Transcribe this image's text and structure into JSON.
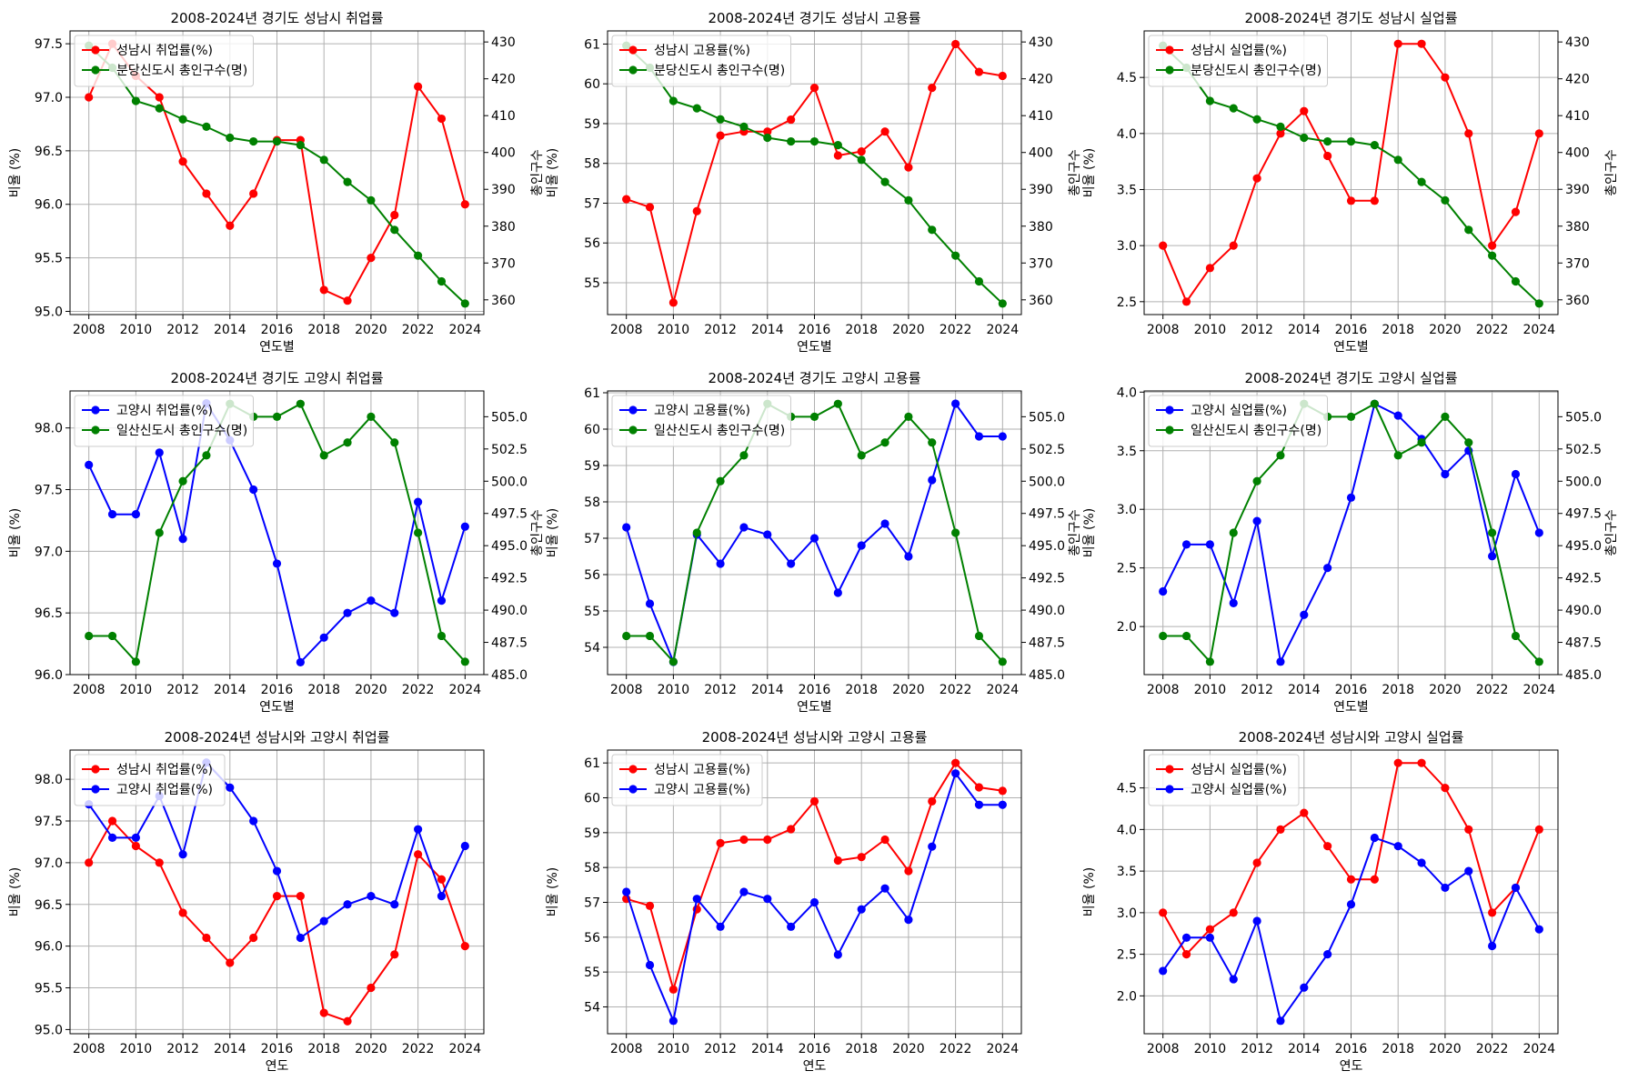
{
  "chart_data": [
    {
      "type": "line",
      "title": "2008-2024년 경기도 성남시 취업률",
      "xlabel": "연도별",
      "ylabel": "비율 (%)",
      "y2label": "총인구수",
      "x": [
        2008,
        2009,
        2010,
        2011,
        2012,
        2013,
        2014,
        2015,
        2016,
        2017,
        2018,
        2019,
        2020,
        2021,
        2022,
        2023,
        2024
      ],
      "xticks": [
        2008,
        2010,
        2012,
        2014,
        2016,
        2018,
        2020,
        2022,
        2024
      ],
      "ylim": [
        94.97,
        97.62
      ],
      "yticks": [
        "95.0",
        "95.5",
        "96.0",
        "96.5",
        "97.0",
        "97.5"
      ],
      "y2lim": [
        356,
        433
      ],
      "y2ticks": [
        "360",
        "370",
        "380",
        "390",
        "400",
        "410",
        "420",
        "430"
      ],
      "grid": true,
      "legend": "upper-left",
      "series": [
        {
          "name": "성남시 취업률(%)",
          "axis": "left",
          "color": "#ff0000",
          "values": [
            97.0,
            97.5,
            97.2,
            97.0,
            96.4,
            96.1,
            95.8,
            96.1,
            96.6,
            96.6,
            95.2,
            95.1,
            95.5,
            95.9,
            97.1,
            96.8,
            96.0
          ]
        },
        {
          "name": "분당신도시 총인구수(명)",
          "axis": "right",
          "color": "#008000",
          "values": [
            429,
            423,
            414,
            412,
            409,
            407,
            404,
            403,
            403,
            402,
            398,
            392,
            387,
            379,
            372,
            365,
            359
          ]
        }
      ]
    },
    {
      "type": "line",
      "title": "2008-2024년 경기도 성남시 고용률",
      "xlabel": "연도별",
      "ylabel": "비율 (%)",
      "y2label": "총인구수",
      "x": [
        2008,
        2009,
        2010,
        2011,
        2012,
        2013,
        2014,
        2015,
        2016,
        2017,
        2018,
        2019,
        2020,
        2021,
        2022,
        2023,
        2024
      ],
      "xticks": [
        2008,
        2010,
        2012,
        2014,
        2016,
        2018,
        2020,
        2022,
        2024
      ],
      "ylim": [
        54.2,
        61.33
      ],
      "yticks": [
        "55",
        "56",
        "57",
        "58",
        "59",
        "60",
        "61"
      ],
      "y2lim": [
        356,
        433
      ],
      "y2ticks": [
        "360",
        "370",
        "380",
        "390",
        "400",
        "410",
        "420",
        "430"
      ],
      "grid": true,
      "legend": "upper-left",
      "series": [
        {
          "name": "성남시 고용률(%)",
          "axis": "left",
          "color": "#ff0000",
          "values": [
            57.1,
            56.9,
            54.5,
            56.8,
            58.7,
            58.8,
            58.8,
            59.1,
            59.9,
            58.2,
            58.3,
            58.8,
            57.9,
            59.9,
            61.0,
            60.3,
            60.2
          ]
        },
        {
          "name": "분당신도시 총인구수(명)",
          "axis": "right",
          "color": "#008000",
          "values": [
            429,
            423,
            414,
            412,
            409,
            407,
            404,
            403,
            403,
            402,
            398,
            392,
            387,
            379,
            372,
            365,
            359
          ]
        }
      ]
    },
    {
      "type": "line",
      "title": "2008-2024년 경기도 성남시 실업률",
      "xlabel": "연도별",
      "ylabel": "비율 (%)",
      "y2label": "총인구수",
      "x": [
        2008,
        2009,
        2010,
        2011,
        2012,
        2013,
        2014,
        2015,
        2016,
        2017,
        2018,
        2019,
        2020,
        2021,
        2022,
        2023,
        2024
      ],
      "xticks": [
        2008,
        2010,
        2012,
        2014,
        2016,
        2018,
        2020,
        2022,
        2024
      ],
      "ylim": [
        2.385,
        4.915
      ],
      "yticks": [
        "2.5",
        "3.0",
        "3.5",
        "4.0",
        "4.5"
      ],
      "y2lim": [
        356,
        433
      ],
      "y2ticks": [
        "360",
        "370",
        "380",
        "390",
        "400",
        "410",
        "420",
        "430"
      ],
      "grid": true,
      "legend": "upper-left",
      "series": [
        {
          "name": "성남시 실업률(%)",
          "axis": "left",
          "color": "#ff0000",
          "values": [
            3.0,
            2.5,
            2.8,
            3.0,
            3.6,
            4.0,
            4.2,
            3.8,
            3.4,
            3.4,
            4.8,
            4.8,
            4.5,
            4.0,
            3.0,
            3.3,
            4.0
          ]
        },
        {
          "name": "분당신도시 총인구수(명)",
          "axis": "right",
          "color": "#008000",
          "values": [
            429,
            423,
            414,
            412,
            409,
            407,
            404,
            403,
            403,
            402,
            398,
            392,
            387,
            379,
            372,
            365,
            359
          ]
        }
      ]
    },
    {
      "type": "line",
      "title": "2008-2024년 경기도 고양시 취업률",
      "xlabel": "연도별",
      "ylabel": "비율 (%)",
      "y2label": "총인구수",
      "x": [
        2008,
        2009,
        2010,
        2011,
        2012,
        2013,
        2014,
        2015,
        2016,
        2017,
        2018,
        2019,
        2020,
        2021,
        2022,
        2023,
        2024
      ],
      "xticks": [
        2008,
        2010,
        2012,
        2014,
        2016,
        2018,
        2020,
        2022,
        2024
      ],
      "ylim": [
        96.0,
        98.3
      ],
      "yticks": [
        "96.0",
        "96.5",
        "97.0",
        "97.5",
        "98.0"
      ],
      "y2lim": [
        485.0,
        507.0
      ],
      "y2ticks": [
        "485.0",
        "487.5",
        "490.0",
        "492.5",
        "495.0",
        "497.5",
        "500.0",
        "502.5",
        "505.0"
      ],
      "grid": true,
      "legend": "upper-left",
      "series": [
        {
          "name": "고양시 취업률(%)",
          "axis": "left",
          "color": "#0000ff",
          "values": [
            97.7,
            97.3,
            97.3,
            97.8,
            97.1,
            98.2,
            97.9,
            97.5,
            96.9,
            96.1,
            96.3,
            96.5,
            96.6,
            96.5,
            97.4,
            96.6,
            97.2
          ]
        },
        {
          "name": "일산신도시 총인구수(명)",
          "axis": "right",
          "color": "#008000",
          "values": [
            488,
            488,
            486,
            496,
            500,
            502,
            506,
            505,
            505,
            506,
            502,
            503,
            505,
            503,
            496,
            488,
            486
          ]
        }
      ]
    },
    {
      "type": "line",
      "title": "2008-2024년 경기도 고양시 고용률",
      "xlabel": "연도별",
      "ylabel": "비율 (%)",
      "y2label": "총인구수",
      "x": [
        2008,
        2009,
        2010,
        2011,
        2012,
        2013,
        2014,
        2015,
        2016,
        2017,
        2018,
        2019,
        2020,
        2021,
        2022,
        2023,
        2024
      ],
      "xticks": [
        2008,
        2010,
        2012,
        2014,
        2016,
        2018,
        2020,
        2022,
        2024
      ],
      "ylim": [
        53.25,
        61.05
      ],
      "yticks": [
        "54",
        "55",
        "56",
        "57",
        "58",
        "59",
        "60",
        "61"
      ],
      "y2lim": [
        485.0,
        507.0
      ],
      "y2ticks": [
        "485.0",
        "487.5",
        "490.0",
        "492.5",
        "495.0",
        "497.5",
        "500.0",
        "502.5",
        "505.0"
      ],
      "grid": true,
      "legend": "upper-left",
      "series": [
        {
          "name": "고양시 고용률(%)",
          "axis": "left",
          "color": "#0000ff",
          "values": [
            57.3,
            55.2,
            53.6,
            57.1,
            56.3,
            57.3,
            57.1,
            56.3,
            57.0,
            55.5,
            56.8,
            57.4,
            56.5,
            58.6,
            60.7,
            59.8,
            59.8
          ]
        },
        {
          "name": "일산신도시 총인구수(명)",
          "axis": "right",
          "color": "#008000",
          "values": [
            488,
            488,
            486,
            496,
            500,
            502,
            506,
            505,
            505,
            506,
            502,
            503,
            505,
            503,
            496,
            488,
            486
          ]
        }
      ]
    },
    {
      "type": "line",
      "title": "2008-2024년 경기도 고양시 실업률",
      "xlabel": "연도별",
      "ylabel": "비율 (%)",
      "y2label": "총인구수",
      "x": [
        2008,
        2009,
        2010,
        2011,
        2012,
        2013,
        2014,
        2015,
        2016,
        2017,
        2018,
        2019,
        2020,
        2021,
        2022,
        2023,
        2024
      ],
      "xticks": [
        2008,
        2010,
        2012,
        2014,
        2016,
        2018,
        2020,
        2022,
        2024
      ],
      "ylim": [
        1.59,
        4.01
      ],
      "yticks": [
        "2.0",
        "2.5",
        "3.0",
        "3.5",
        "4.0"
      ],
      "y2lim": [
        485.0,
        507.0
      ],
      "y2ticks": [
        "485.0",
        "487.5",
        "490.0",
        "492.5",
        "495.0",
        "497.5",
        "500.0",
        "502.5",
        "505.0"
      ],
      "grid": true,
      "legend": "upper-left",
      "series": [
        {
          "name": "고양시 실업률(%)",
          "axis": "left",
          "color": "#0000ff",
          "values": [
            2.3,
            2.7,
            2.7,
            2.2,
            2.9,
            1.7,
            2.1,
            2.5,
            3.1,
            3.9,
            3.8,
            3.6,
            3.3,
            3.5,
            2.6,
            3.3,
            2.8
          ]
        },
        {
          "name": "일산신도시 총인구수(명)",
          "axis": "right",
          "color": "#008000",
          "values": [
            488,
            488,
            486,
            496,
            500,
            502,
            506,
            505,
            505,
            506,
            502,
            503,
            505,
            503,
            496,
            488,
            486
          ]
        }
      ]
    },
    {
      "type": "line",
      "title": "2008-2024년 성남시와 고양시 취업률",
      "xlabel": "연도",
      "ylabel": "비율 (%)",
      "x": [
        2008,
        2009,
        2010,
        2011,
        2012,
        2013,
        2014,
        2015,
        2016,
        2017,
        2018,
        2019,
        2020,
        2021,
        2022,
        2023,
        2024
      ],
      "xticks": [
        2008,
        2010,
        2012,
        2014,
        2016,
        2018,
        2020,
        2022,
        2024
      ],
      "ylim": [
        94.95,
        98.35
      ],
      "yticks": [
        "95.0",
        "95.5",
        "96.0",
        "96.5",
        "97.0",
        "97.5",
        "98.0"
      ],
      "grid": true,
      "legend": "upper-left",
      "series": [
        {
          "name": "성남시 취업률(%)",
          "axis": "left",
          "color": "#ff0000",
          "values": [
            97.0,
            97.5,
            97.2,
            97.0,
            96.4,
            96.1,
            95.8,
            96.1,
            96.6,
            96.6,
            95.2,
            95.1,
            95.5,
            95.9,
            97.1,
            96.8,
            96.0
          ]
        },
        {
          "name": "고양시 취업률(%)",
          "axis": "left",
          "color": "#0000ff",
          "values": [
            97.7,
            97.3,
            97.3,
            97.8,
            97.1,
            98.2,
            97.9,
            97.5,
            96.9,
            96.1,
            96.3,
            96.5,
            96.6,
            96.5,
            97.4,
            96.6,
            97.2
          ]
        }
      ]
    },
    {
      "type": "line",
      "title": "2008-2024년 성남시와 고양시 고용률",
      "xlabel": "연도",
      "ylabel": "비율 (%)",
      "x": [
        2008,
        2009,
        2010,
        2011,
        2012,
        2013,
        2014,
        2015,
        2016,
        2017,
        2018,
        2019,
        2020,
        2021,
        2022,
        2023,
        2024
      ],
      "xticks": [
        2008,
        2010,
        2012,
        2014,
        2016,
        2018,
        2020,
        2022,
        2024
      ],
      "ylim": [
        53.23,
        61.37
      ],
      "yticks": [
        "54",
        "55",
        "56",
        "57",
        "58",
        "59",
        "60",
        "61"
      ],
      "grid": true,
      "legend": "upper-left",
      "series": [
        {
          "name": "성남시 고용률(%)",
          "axis": "left",
          "color": "#ff0000",
          "values": [
            57.1,
            56.9,
            54.5,
            56.8,
            58.7,
            58.8,
            58.8,
            59.1,
            59.9,
            58.2,
            58.3,
            58.8,
            57.9,
            59.9,
            61.0,
            60.3,
            60.2
          ]
        },
        {
          "name": "고양시 고용률(%)",
          "axis": "left",
          "color": "#0000ff",
          "values": [
            57.3,
            55.2,
            53.6,
            57.1,
            56.3,
            57.3,
            57.1,
            56.3,
            57.0,
            55.5,
            56.8,
            57.4,
            56.5,
            58.6,
            60.7,
            59.8,
            59.8
          ]
        }
      ]
    },
    {
      "type": "line",
      "title": "2008-2024년 성남시와 고양시 실업률",
      "xlabel": "연도",
      "ylabel": "비율 (%)",
      "x": [
        2008,
        2009,
        2010,
        2011,
        2012,
        2013,
        2014,
        2015,
        2016,
        2017,
        2018,
        2019,
        2020,
        2021,
        2022,
        2023,
        2024
      ],
      "xticks": [
        2008,
        2010,
        2012,
        2014,
        2016,
        2018,
        2020,
        2022,
        2024
      ],
      "ylim": [
        1.545,
        4.955
      ],
      "yticks": [
        "2.0",
        "2.5",
        "3.0",
        "3.5",
        "4.0",
        "4.5"
      ],
      "grid": true,
      "legend": "upper-left",
      "series": [
        {
          "name": "성남시 실업률(%)",
          "axis": "left",
          "color": "#ff0000",
          "values": [
            3.0,
            2.5,
            2.8,
            3.0,
            3.6,
            4.0,
            4.2,
            3.8,
            3.4,
            3.4,
            4.8,
            4.8,
            4.5,
            4.0,
            3.0,
            3.3,
            4.0
          ]
        },
        {
          "name": "고양시 실업률(%)",
          "axis": "left",
          "color": "#0000ff",
          "values": [
            2.3,
            2.7,
            2.7,
            2.2,
            2.9,
            1.7,
            2.1,
            2.5,
            3.1,
            3.9,
            3.8,
            3.6,
            3.3,
            3.5,
            2.6,
            3.3,
            2.8
          ]
        }
      ]
    }
  ]
}
